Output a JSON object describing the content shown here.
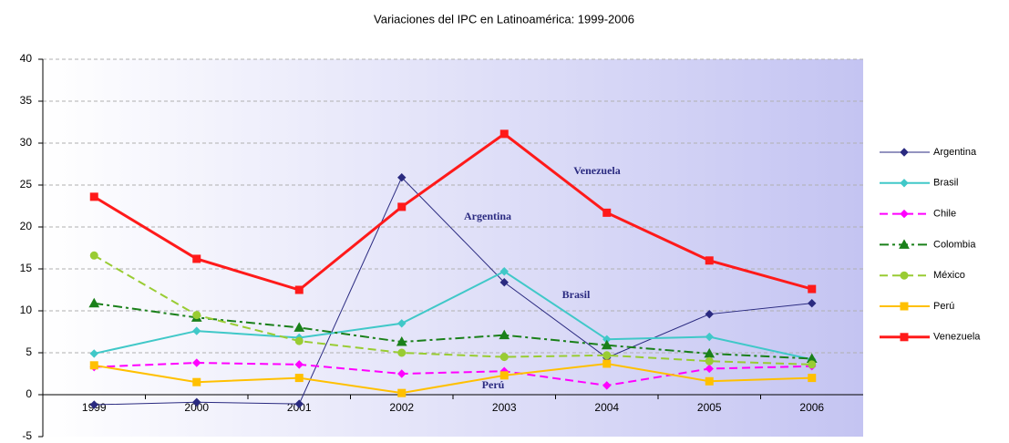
{
  "chart_data": {
    "type": "line",
    "title": "Variaciones del IPC en Latinoamérica: 1999-2006",
    "categories": [
      "1999",
      "2000",
      "2001",
      "2002",
      "2003",
      "2004",
      "2005",
      "2006"
    ],
    "ylim": [
      -5,
      40
    ],
    "yticks": [
      -5,
      0,
      5,
      10,
      15,
      20,
      25,
      30,
      35,
      40
    ],
    "grid": true,
    "legend": "right",
    "series": [
      {
        "name": "Argentina",
        "color": "#2a2a80",
        "marker": "diamond",
        "dash": "solid",
        "width": 1,
        "values": [
          -1.2,
          -0.9,
          -1.1,
          25.9,
          13.4,
          4.4,
          9.6,
          10.9
        ]
      },
      {
        "name": "Brasil",
        "color": "#40c8c8",
        "marker": "diamond",
        "dash": "solid",
        "width": 2,
        "values": [
          4.9,
          7.6,
          6.8,
          8.5,
          14.7,
          6.6,
          6.9,
          4.2
        ]
      },
      {
        "name": "Chile",
        "color": "#ff00ff",
        "marker": "diamond",
        "dash": "dash",
        "width": 2,
        "values": [
          3.3,
          3.8,
          3.6,
          2.5,
          2.8,
          1.1,
          3.1,
          3.4
        ]
      },
      {
        "name": "Colombia",
        "color": "#1a801a",
        "marker": "triangle",
        "dash": "dashdot",
        "width": 2,
        "values": [
          10.9,
          9.2,
          8.0,
          6.3,
          7.1,
          5.9,
          4.9,
          4.3
        ]
      },
      {
        "name": "México",
        "color": "#99cc33",
        "marker": "circle",
        "dash": "dash",
        "width": 2,
        "values": [
          16.6,
          9.5,
          6.4,
          5.0,
          4.5,
          4.7,
          4.0,
          3.6
        ]
      },
      {
        "name": "Perú",
        "color": "#ffc000",
        "marker": "square",
        "dash": "solid",
        "width": 2,
        "values": [
          3.5,
          1.5,
          2.0,
          0.2,
          2.3,
          3.7,
          1.6,
          2.0
        ]
      },
      {
        "name": "Venezuela",
        "color": "#ff1a1a",
        "marker": "square",
        "dash": "solid",
        "width": 3,
        "values": [
          23.6,
          16.2,
          12.5,
          22.4,
          31.1,
          21.7,
          16.0,
          12.6
        ]
      }
    ],
    "annotations": [
      "Venezuela",
      "Argentina",
      "Brasil",
      "Perú"
    ]
  }
}
